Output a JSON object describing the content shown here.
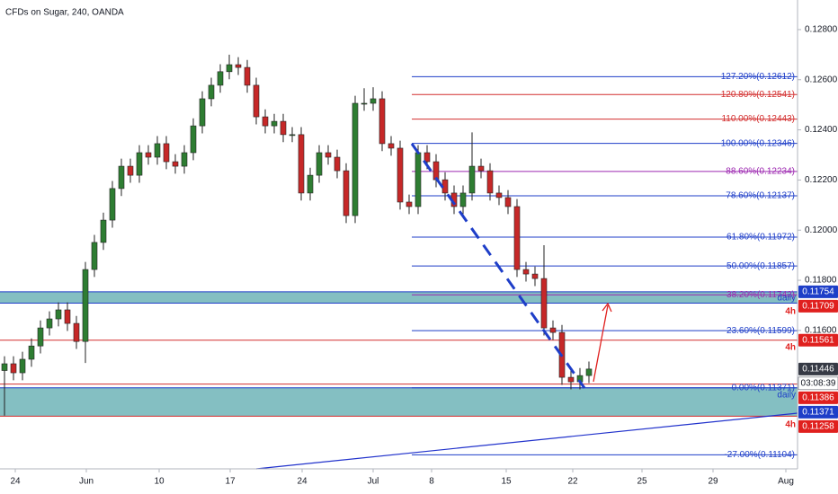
{
  "chart_data": {
    "type": "candlestick",
    "title": "CFDs on Sugar, 240, OANDA",
    "up_color": "#2e7d32",
    "down_color": "#c62828",
    "x": [
      0,
      1,
      2,
      3,
      4,
      5,
      6,
      7,
      8,
      9,
      10,
      11,
      12,
      13,
      14,
      15,
      16,
      17,
      18,
      19,
      20,
      21,
      22,
      23,
      24,
      25,
      26,
      27,
      28,
      29,
      30,
      31,
      32,
      33,
      34,
      35,
      36,
      37,
      38,
      39,
      40,
      41,
      42,
      43,
      44,
      45,
      46,
      47,
      48,
      49,
      50,
      51,
      52,
      53,
      54,
      55,
      56,
      57,
      58,
      59,
      60,
      61,
      62,
      63,
      64,
      65
    ],
    "open": [
      0.1144,
      0.11467,
      0.11431,
      0.11485,
      0.11538,
      0.1161,
      0.11646,
      0.11682,
      0.11628,
      0.11556,
      0.11843,
      0.11951,
      0.1204,
      0.12166,
      0.12255,
      0.12219,
      0.12309,
      0.12291,
      0.12345,
      0.12273,
      0.12255,
      0.12309,
      0.12416,
      0.12524,
      0.12578,
      0.12632,
      0.1266,
      0.12649,
      0.12578,
      0.12452,
      0.12416,
      0.12434,
      0.12381,
      0.12381,
      0.12148,
      0.12219,
      0.12309,
      0.12291,
      0.12237,
      0.12058,
      0.12506,
      0.12506,
      0.12524,
      0.12345,
      0.12327,
      0.12112,
      0.12094,
      0.12309,
      0.12273,
      0.12201,
      0.12148,
      0.12094,
      0.12148,
      0.12255,
      0.12237,
      0.12148,
      0.1213,
      0.12094,
      0.11843,
      0.11825,
      0.11807,
      0.1161,
      0.11592,
      0.11413,
      0.11395,
      0.1142
    ],
    "high": [
      0.11497,
      0.11497,
      0.11515,
      0.11568,
      0.1164,
      0.11676,
      0.11712,
      0.11712,
      0.11658,
      0.11873,
      0.11981,
      0.1207,
      0.12196,
      0.12285,
      0.12285,
      0.12339,
      0.12339,
      0.12375,
      0.12375,
      0.12303,
      0.12339,
      0.12446,
      0.12554,
      0.12608,
      0.12662,
      0.127,
      0.1269,
      0.12679,
      0.12608,
      0.12482,
      0.12464,
      0.12464,
      0.12411,
      0.12411,
      0.12249,
      0.12339,
      0.12339,
      0.12321,
      0.12267,
      0.12536,
      0.12566,
      0.1257,
      0.12554,
      0.12375,
      0.12357,
      0.12142,
      0.12339,
      0.12339,
      0.12303,
      0.12231,
      0.12178,
      0.12178,
      0.1239,
      0.12285,
      0.12267,
      0.12178,
      0.1216,
      0.12124,
      0.11873,
      0.11855,
      0.1194,
      0.1164,
      0.11622,
      0.11443,
      0.1145,
      0.11476
    ],
    "low": [
      0.1126,
      0.11401,
      0.11401,
      0.11455,
      0.11508,
      0.1158,
      0.11616,
      0.11598,
      0.11526,
      0.1147,
      0.11813,
      0.11921,
      0.1201,
      0.12136,
      0.12189,
      0.12189,
      0.12261,
      0.12261,
      0.12243,
      0.12225,
      0.12225,
      0.12279,
      0.12386,
      0.12494,
      0.12548,
      0.12602,
      0.12619,
      0.12548,
      0.12422,
      0.12386,
      0.12386,
      0.12351,
      0.12351,
      0.12118,
      0.12118,
      0.12189,
      0.12261,
      0.12207,
      0.12028,
      0.12028,
      0.12476,
      0.12476,
      0.12315,
      0.12297,
      0.12082,
      0.12064,
      0.12064,
      0.12243,
      0.12171,
      0.12118,
      0.12064,
      0.12064,
      0.12118,
      0.12207,
      0.12118,
      0.121,
      0.12064,
      0.11813,
      0.11795,
      0.11777,
      0.1158,
      0.11562,
      0.11383,
      0.11365,
      0.11365,
      0.1139
    ],
    "close": [
      0.11467,
      0.11431,
      0.11485,
      0.11538,
      0.1161,
      0.11646,
      0.11682,
      0.11628,
      0.11556,
      0.11843,
      0.11951,
      0.1204,
      0.12166,
      0.12255,
      0.12219,
      0.12309,
      0.12291,
      0.12345,
      0.12273,
      0.12255,
      0.12309,
      0.12416,
      0.12524,
      0.12578,
      0.12632,
      0.1266,
      0.12649,
      0.12578,
      0.12452,
      0.12416,
      0.12434,
      0.12381,
      0.12381,
      0.12148,
      0.12219,
      0.12309,
      0.12291,
      0.12237,
      0.12058,
      0.12506,
      0.12506,
      0.12524,
      0.12345,
      0.12327,
      0.12112,
      0.12094,
      0.12309,
      0.12273,
      0.12201,
      0.12148,
      0.12094,
      0.12148,
      0.12255,
      0.12237,
      0.12148,
      0.1213,
      0.12094,
      0.11843,
      0.11825,
      0.11807,
      0.1161,
      0.11592,
      0.11413,
      0.11395,
      0.1142,
      0.11446
    ],
    "xlim": [
      -0.5,
      88.2
    ],
    "xticks": [
      {
        "value": 1.2,
        "label": "24"
      },
      {
        "value": 9.1,
        "label": "Jun"
      },
      {
        "value": 17.2,
        "label": "10"
      },
      {
        "value": 25.1,
        "label": "17"
      },
      {
        "value": 33.1,
        "label": "24"
      },
      {
        "value": 41,
        "label": "Jul"
      },
      {
        "value": 47.5,
        "label": "8"
      },
      {
        "value": 55.8,
        "label": "15"
      },
      {
        "value": 63.2,
        "label": "22"
      },
      {
        "value": 70.9,
        "label": "25"
      },
      {
        "value": 78.8,
        "label": "29"
      },
      {
        "value": 86.9,
        "label": "Aug"
      }
    ],
    "ylim": [
      0.11055,
      0.12918
    ],
    "yticks": [
      {
        "value": 0.128,
        "label": "0.12800"
      },
      {
        "value": 0.126,
        "label": "0.12600"
      },
      {
        "value": 0.124,
        "label": "0.12400"
      },
      {
        "value": 0.122,
        "label": "0.12200"
      },
      {
        "value": 0.12,
        "label": "0.12000"
      },
      {
        "value": 0.118,
        "label": "0.11800"
      },
      {
        "value": 0.116,
        "label": "0.11600"
      }
    ],
    "fib_levels": [
      {
        "label": "127.20%(0.12612)",
        "value": 0.12612,
        "color": "#1e3ec8"
      },
      {
        "label": "120.80%(0.12541)",
        "value": 0.12541,
        "color": "#d32f2f"
      },
      {
        "label": "110.00%(0.12443)",
        "value": 0.12443,
        "color": "#d32f2f"
      },
      {
        "label": "100.00%(0.12346)",
        "value": 0.12346,
        "color": "#1e3ec8"
      },
      {
        "label": "88.60%(0.12234)",
        "value": 0.12234,
        "color": "#9c27b0"
      },
      {
        "label": "78.60%(0.12137)",
        "value": 0.12137,
        "color": "#1e3ec8"
      },
      {
        "label": "61.80%(0.11972)",
        "value": 0.11972,
        "color": "#1e3ec8"
      },
      {
        "label": "50.00%(0.11857)",
        "value": 0.11857,
        "color": "#1e3ec8"
      },
      {
        "label": "38.20%(0.11742)",
        "value": 0.11742,
        "color": "#9c27b0"
      },
      {
        "label": "23.60%(0.11599)",
        "value": 0.11599,
        "color": "#1e3ec8"
      },
      {
        "label": "0.00%(0.11371)",
        "value": 0.11371,
        "color": "#1e3ec8"
      },
      {
        "label": "-27.00%(0.11104)",
        "value": 0.11104,
        "color": "#1e3ec8"
      }
    ],
    "zones": [
      {
        "from": 0.11709,
        "to": 0.11754,
        "color": "#5ba9ad"
      },
      {
        "from": 0.11258,
        "to": 0.11371,
        "color": "#5ba9ad"
      }
    ],
    "levels": [
      {
        "value": 0.11754,
        "color": "#1e3ec8"
      },
      {
        "value": 0.11709,
        "color": "#1e3ec8"
      },
      {
        "value": 0.11561,
        "color": "#d32f2f"
      },
      {
        "value": 0.11386,
        "color": "#d32f2f"
      },
      {
        "value": 0.11371,
        "color": "#1e3ec8"
      },
      {
        "value": 0.11258,
        "color": "#d32f2f"
      }
    ],
    "price_labels": [
      {
        "value": 0.11754,
        "label": "0.11754",
        "color": "#1e3ec8"
      },
      {
        "value": 0.11709,
        "label": "0.11709",
        "color": "#e0201e"
      },
      {
        "value": 0.11561,
        "label": "0.11561",
        "color": "#e0201e"
      },
      {
        "value": 0.11446,
        "label": "0.11446",
        "color": "#363a45"
      },
      {
        "value": 0.11386,
        "label": "0.11386",
        "color": "#e0201e"
      },
      {
        "value": 0.11371,
        "label": "0.11371",
        "color": "#1e3ec8"
      },
      {
        "value": 0.11258,
        "label": "0.11258",
        "color": "#e0201e"
      }
    ],
    "countdown": "03:08:39",
    "annotations": [
      {
        "text": "daily",
        "color": "#1e3ec8"
      },
      {
        "text": "4h",
        "color": "#e0201e"
      },
      {
        "text": "4h",
        "color": "#e0201e"
      },
      {
        "text": "daily",
        "color": "#1e3ec8"
      },
      {
        "text": "4h",
        "color": "#e0201e"
      }
    ]
  }
}
